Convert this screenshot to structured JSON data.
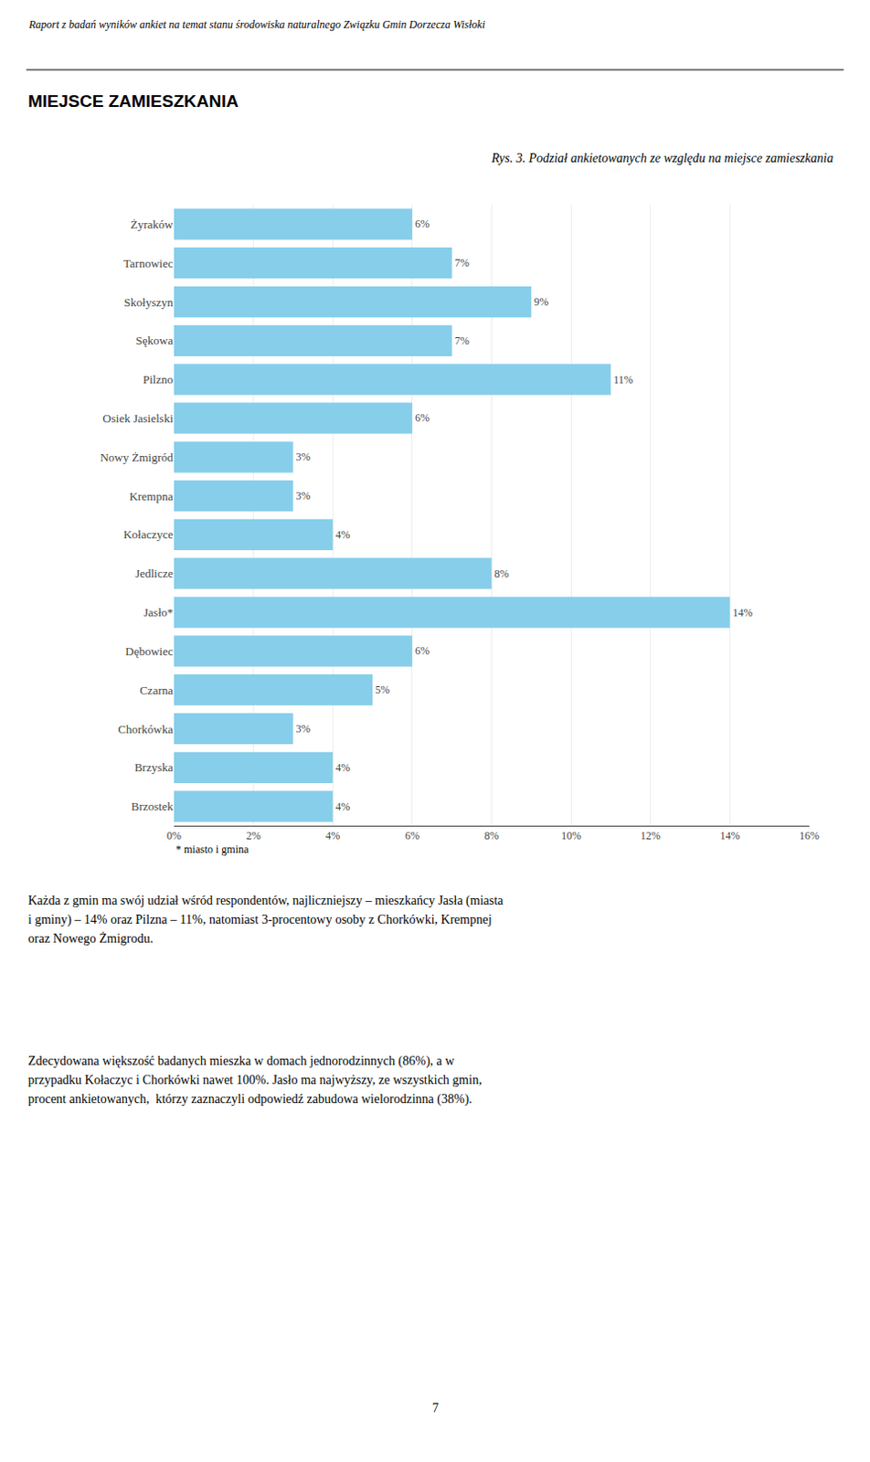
{
  "chart_data": {
    "type": "bar",
    "orientation": "horizontal",
    "title": "Rys. 3. Podział ankietowanych ze względu na miejsce zamieszkania",
    "categories": [
      "Żyraków",
      "Tarnowiec",
      "Skołyszyn",
      "Sękowa",
      "Pilzno",
      "Osiek Jasielski",
      "Nowy Żmigród",
      "Krempna",
      "Kołaczyce",
      "Jedlicze",
      "Jasło*",
      "Dębowiec",
      "Czarna",
      "Chorkówka",
      "Brzyska",
      "Brzostek"
    ],
    "values": [
      6,
      7,
      9,
      7,
      11,
      6,
      3,
      3,
      4,
      8,
      14,
      6,
      5,
      3,
      4,
      4
    ],
    "value_labels": [
      "6%",
      "7%",
      "9%",
      "7%",
      "11%",
      "6%",
      "3%",
      "3%",
      "4%",
      "8%",
      "14%",
      "6%",
      "5%",
      "3%",
      "4%",
      "4%"
    ],
    "data_labels": true,
    "color": "#87CEEB",
    "xlim": [
      0,
      16
    ],
    "xticks": [
      {
        "value": 0,
        "label": "0%"
      },
      {
        "value": 2,
        "label": "2%"
      },
      {
        "value": 4,
        "label": "4%"
      },
      {
        "value": 6,
        "label": "6%"
      },
      {
        "value": 8,
        "label": "8%"
      },
      {
        "value": 10,
        "label": "10%"
      },
      {
        "value": 12,
        "label": "12%"
      },
      {
        "value": 14,
        "label": "14%"
      },
      {
        "value": 16,
        "label": "16%"
      }
    ],
    "grid": true,
    "annotations": [
      "Raport z badań wyników ankiet na temat stanu środowiska naturalnego Związku Gmin Dorzecza Wisłoki",
      "MIEJSCE ZAMIESZKANIA",
      "* miasto i gmina",
      "Każda z gmin ma swój udział wśród respondentów, najliczniejszy – mieszkańcy Jasła (miasta",
      "i gminy) – 14% oraz Pilzna – 11%, natomiast 3-procentowy osoby z Chorkówki, Krempnej",
      "oraz Nowego Żmigrodu.",
      "Zdecydowana większość badanych mieszka w domach jednorodzinnych (86%), a w",
      "przypadku Kołaczyc i Chorkówki nawet 100%. Jasło ma najwyższy, ze wszystkich gmin,",
      "procent ankietowanych,  którzy zaznaczyli odpowiedź zabudowa wielorodzinna (38%).",
      "7"
    ]
  }
}
